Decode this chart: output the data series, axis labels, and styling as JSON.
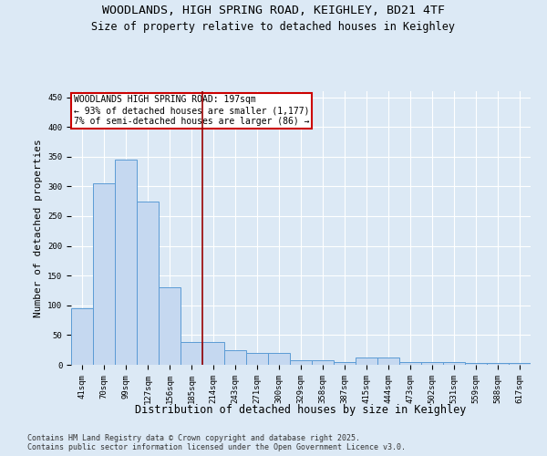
{
  "title_line1": "WOODLANDS, HIGH SPRING ROAD, KEIGHLEY, BD21 4TF",
  "title_line2": "Size of property relative to detached houses in Keighley",
  "xlabel": "Distribution of detached houses by size in Keighley",
  "ylabel": "Number of detached properties",
  "categories": [
    "41sqm",
    "70sqm",
    "99sqm",
    "127sqm",
    "156sqm",
    "185sqm",
    "214sqm",
    "243sqm",
    "271sqm",
    "300sqm",
    "329sqm",
    "358sqm",
    "387sqm",
    "415sqm",
    "444sqm",
    "473sqm",
    "502sqm",
    "531sqm",
    "559sqm",
    "588sqm",
    "617sqm"
  ],
  "values": [
    95,
    305,
    345,
    275,
    130,
    38,
    38,
    25,
    20,
    20,
    8,
    8,
    5,
    12,
    12,
    5,
    5,
    5,
    3,
    3,
    3
  ],
  "bar_color": "#c5d8f0",
  "bar_edge_color": "#5b9bd5",
  "property_line_x": 6.0,
  "annotation_text_line1": "WOODLANDS HIGH SPRING ROAD: 197sqm",
  "annotation_text_line2": "← 93% of detached houses are smaller (1,177)",
  "annotation_text_line3": "7% of semi-detached houses are larger (86) →",
  "annotation_box_color": "#ffffff",
  "annotation_box_edge": "#cc0000",
  "vline_color": "#990000",
  "ylim": [
    0,
    460
  ],
  "yticks": [
    0,
    50,
    100,
    150,
    200,
    250,
    300,
    350,
    400,
    450
  ],
  "footer_line1": "Contains HM Land Registry data © Crown copyright and database right 2025.",
  "footer_line2": "Contains public sector information licensed under the Open Government Licence v3.0.",
  "background_color": "#dce9f5",
  "plot_bg_color": "#dce9f5",
  "grid_color": "#ffffff",
  "title_fontsize": 9.5,
  "subtitle_fontsize": 8.5,
  "axis_label_fontsize": 8,
  "tick_fontsize": 6.5,
  "annotation_fontsize": 7,
  "footer_fontsize": 6
}
